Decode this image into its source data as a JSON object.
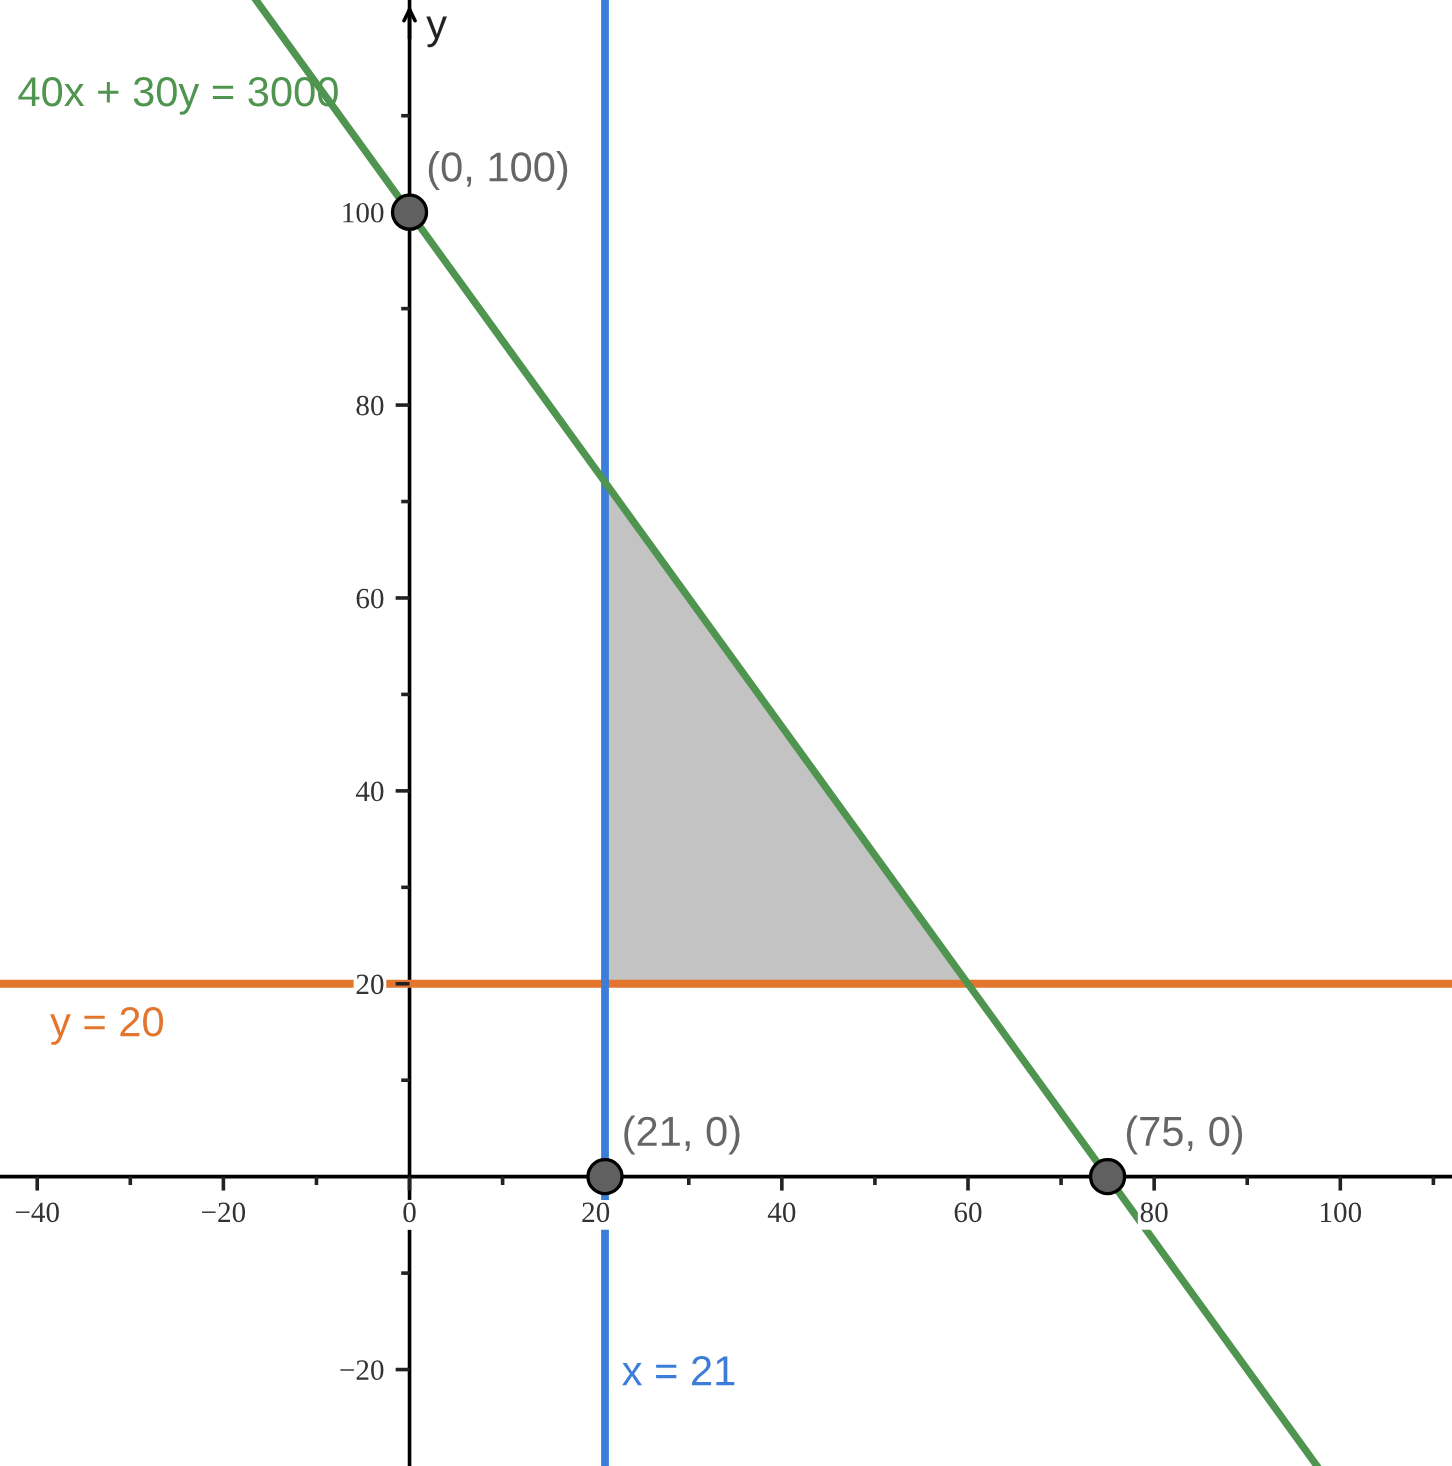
{
  "chart_data": {
    "type": "line",
    "ylabel": "y",
    "xlim": [
      -44,
      112
    ],
    "ylim": [
      -30,
      122
    ],
    "xticks": [
      {
        "value": -40,
        "label": "−40"
      },
      {
        "value": -30,
        "label": null
      },
      {
        "value": -20,
        "label": "−20"
      },
      {
        "value": -10,
        "label": null
      },
      0,
      {
        "value": 10,
        "label": null
      },
      20,
      {
        "value": 30,
        "label": null
      },
      40,
      {
        "value": 50,
        "label": null
      },
      60,
      {
        "value": 70,
        "label": null
      },
      80,
      {
        "value": 90,
        "label": null
      },
      100,
      {
        "value": 110,
        "label": null
      }
    ],
    "yticks": [
      {
        "value": -20,
        "label": "−20"
      },
      {
        "value": -10,
        "label": null
      },
      {
        "value": 10,
        "label": null
      },
      20,
      {
        "value": 30,
        "label": null
      },
      40,
      {
        "value": 50,
        "label": null
      },
      60,
      {
        "value": 70,
        "label": null
      },
      80,
      {
        "value": 90,
        "label": null
      },
      100,
      {
        "value": 110,
        "label": null
      }
    ],
    "series": [
      {
        "name": "40x + 30y = 3000",
        "color": "#4f944f",
        "x": [
          -16.5,
          0,
          21,
          60,
          75,
          97.5
        ],
        "values": [
          122,
          100,
          72,
          20,
          0,
          -30
        ],
        "lower": [
          null,
          null,
          20,
          20,
          null,
          null
        ],
        "upper": [
          null,
          null,
          72,
          20,
          null,
          null
        ]
      },
      {
        "type": "scatter",
        "color": "#606060",
        "marker": "circle",
        "x": [
          0,
          21,
          75
        ],
        "values": [
          100,
          0,
          0
        ],
        "value_labels": [
          "(0, 100)",
          "(21, 0)",
          "(75, 0)"
        ]
      }
    ],
    "ref_lines": [
      {
        "axis": "y",
        "value": 20,
        "label": "y = 20",
        "color": "#e3762f"
      },
      {
        "axis": "x",
        "value": 21,
        "label": "x = 21",
        "color": "#3b7dd8"
      }
    ]
  }
}
